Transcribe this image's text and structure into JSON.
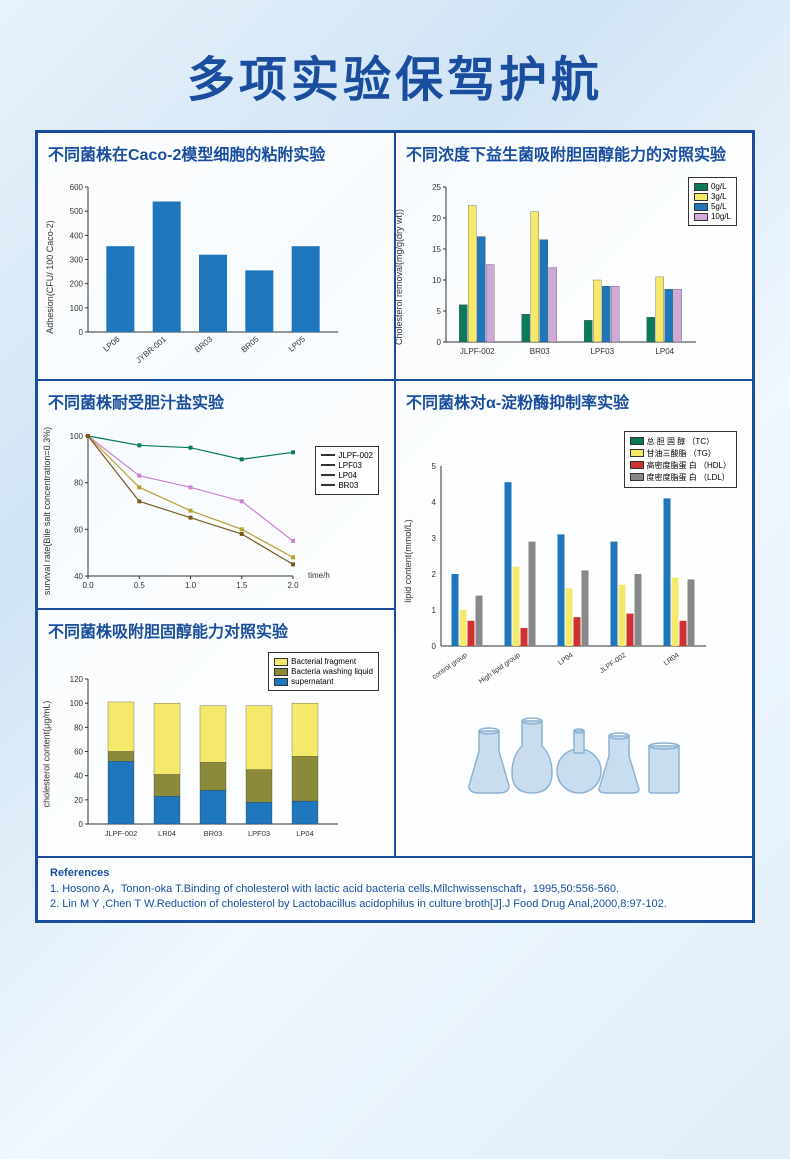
{
  "page_title": "多项实验保驾护航",
  "panel1": {
    "title": "不同菌株在Caco-2模型细胞的粘附实验",
    "type": "bar",
    "ylabel": "Adhesion(CFU/ 100 Caco-2)",
    "ylim": [
      0,
      600
    ],
    "ytick_step": 100,
    "categories": [
      "LP06",
      "JYBR-001",
      "BR03",
      "BR05",
      "LP05"
    ],
    "values": [
      355,
      540,
      320,
      255,
      355
    ],
    "bar_color": "#1e77bc",
    "bg": "#ffffff"
  },
  "panel2": {
    "title": "不同浓度下益生菌吸附胆固醇能力的对照实验",
    "type": "grouped-bar",
    "ylabel": "Cholesterol removal(mg/g(dry wt))",
    "ylim": [
      0,
      25
    ],
    "ytick_step": 5,
    "categories": [
      "JLPF-002",
      "BR03",
      "LPF03",
      "LP04"
    ],
    "series": [
      {
        "label": "0g/L",
        "color": "#0a7a5a",
        "values": [
          6,
          4.5,
          3.5,
          4
        ]
      },
      {
        "label": "3g/L",
        "color": "#f5e96b",
        "values": [
          22,
          21,
          10,
          10.5
        ]
      },
      {
        "label": "5g/L",
        "color": "#1e77bc",
        "values": [
          17,
          16.5,
          9,
          8.5
        ]
      },
      {
        "label": "10g/L",
        "color": "#d0a8d8",
        "values": [
          12.5,
          12,
          9,
          8.5
        ]
      }
    ],
    "bg": "#ffffff"
  },
  "panel3": {
    "title": "不同菌株耐受胆汁盐实验",
    "type": "line",
    "ylabel": "survival rate(Bile salt concentration=0.3%)",
    "xlabel": "time/h",
    "ylim": [
      40,
      100
    ],
    "ytick_step": 20,
    "xlim": [
      0,
      2
    ],
    "xtick_step": 0.5,
    "series": [
      {
        "label": "JLPF-002",
        "color": "#0a7a5a",
        "values": [
          [
            0,
            100
          ],
          [
            0.5,
            96
          ],
          [
            1,
            95
          ],
          [
            1.5,
            90
          ],
          [
            2,
            93
          ]
        ]
      },
      {
        "label": "LPF03",
        "color": "#d080d0",
        "values": [
          [
            0,
            100
          ],
          [
            0.5,
            83
          ],
          [
            1,
            78
          ],
          [
            1.5,
            72
          ],
          [
            2,
            55
          ]
        ]
      },
      {
        "label": "LP04",
        "color": "#b8a030",
        "values": [
          [
            0,
            100
          ],
          [
            0.5,
            78
          ],
          [
            1,
            68
          ],
          [
            1.5,
            60
          ],
          [
            2,
            48
          ]
        ]
      },
      {
        "label": "BR03",
        "color": "#7a5a20",
        "values": [
          [
            0,
            100
          ],
          [
            0.5,
            72
          ],
          [
            1,
            65
          ],
          [
            1.5,
            58
          ],
          [
            2,
            45
          ]
        ]
      }
    ],
    "bg": "#ffffff"
  },
  "panel4": {
    "title": "不同菌株对α-淀粉酶抑制率实验",
    "type": "grouped-bar",
    "ylabel": "lipid content(mmol/L)",
    "ylim": [
      0,
      5
    ],
    "ytick_step": 1,
    "categories": [
      "control group",
      "High lipid group",
      "LP04",
      "JLPF-002",
      "LR04"
    ],
    "series": [
      {
        "label": "总 胆 固 醇 （TC）",
        "color": "#0a7a5a",
        "values": [
          0,
          0,
          0,
          0,
          0
        ]
      },
      {
        "label": "甘油三酸脂 （TG）",
        "color": "#f5e96b",
        "values": [
          1.0,
          2.2,
          1.6,
          1.7,
          1.9
        ]
      },
      {
        "label": "高密度脂蛋 白 （HDL）",
        "color": "#d03030",
        "values": [
          0.7,
          0.5,
          0.8,
          0.9,
          0.7
        ]
      },
      {
        "label": "度密度脂蛋 白 （LDL）",
        "color": "#888888",
        "values": [
          1.4,
          2.9,
          2.1,
          2.0,
          1.85
        ]
      }
    ],
    "blue_series": {
      "color": "#1e77bc",
      "values": [
        2.0,
        4.55,
        3.1,
        2.9,
        4.1
      ]
    },
    "bg": "#ffffff"
  },
  "panel5": {
    "title": "不同菌株吸附胆固醇能力对照实验",
    "type": "stacked-bar",
    "ylabel": "cholesterol content(μg/mL)",
    "ylim": [
      0,
      120
    ],
    "ytick_step": 20,
    "categories": [
      "JLPF-002",
      "LR04",
      "BR03",
      "LPF03",
      "LP04"
    ],
    "stacks": [
      {
        "label": "Bacterial fragment",
        "color": "#f5e96b"
      },
      {
        "label": "Bacteria washing liquid",
        "color": "#8a8a3a"
      },
      {
        "label": "supernatant",
        "color": "#1e77bc"
      }
    ],
    "values": [
      [
        41,
        8,
        52
      ],
      [
        59,
        18,
        23
      ],
      [
        47,
        23,
        28
      ],
      [
        53,
        27,
        18
      ],
      [
        44,
        37,
        19
      ]
    ],
    "bg": "#ffffff"
  },
  "references": {
    "title": "References",
    "items": [
      "1. Hosono A，Tonon-oka T.Binding of cholesterol with lactic acid bacteria cells.Milchwissenschaft，1995,50:556-560.",
      "2. Lin M Y ,Chen T W.Reduction of cholesterol by Lactobacillus acidophilus in culture broth[J].J Food Drug Anal,2000,8:97-102."
    ]
  },
  "flask_color": "#a8c8e8"
}
